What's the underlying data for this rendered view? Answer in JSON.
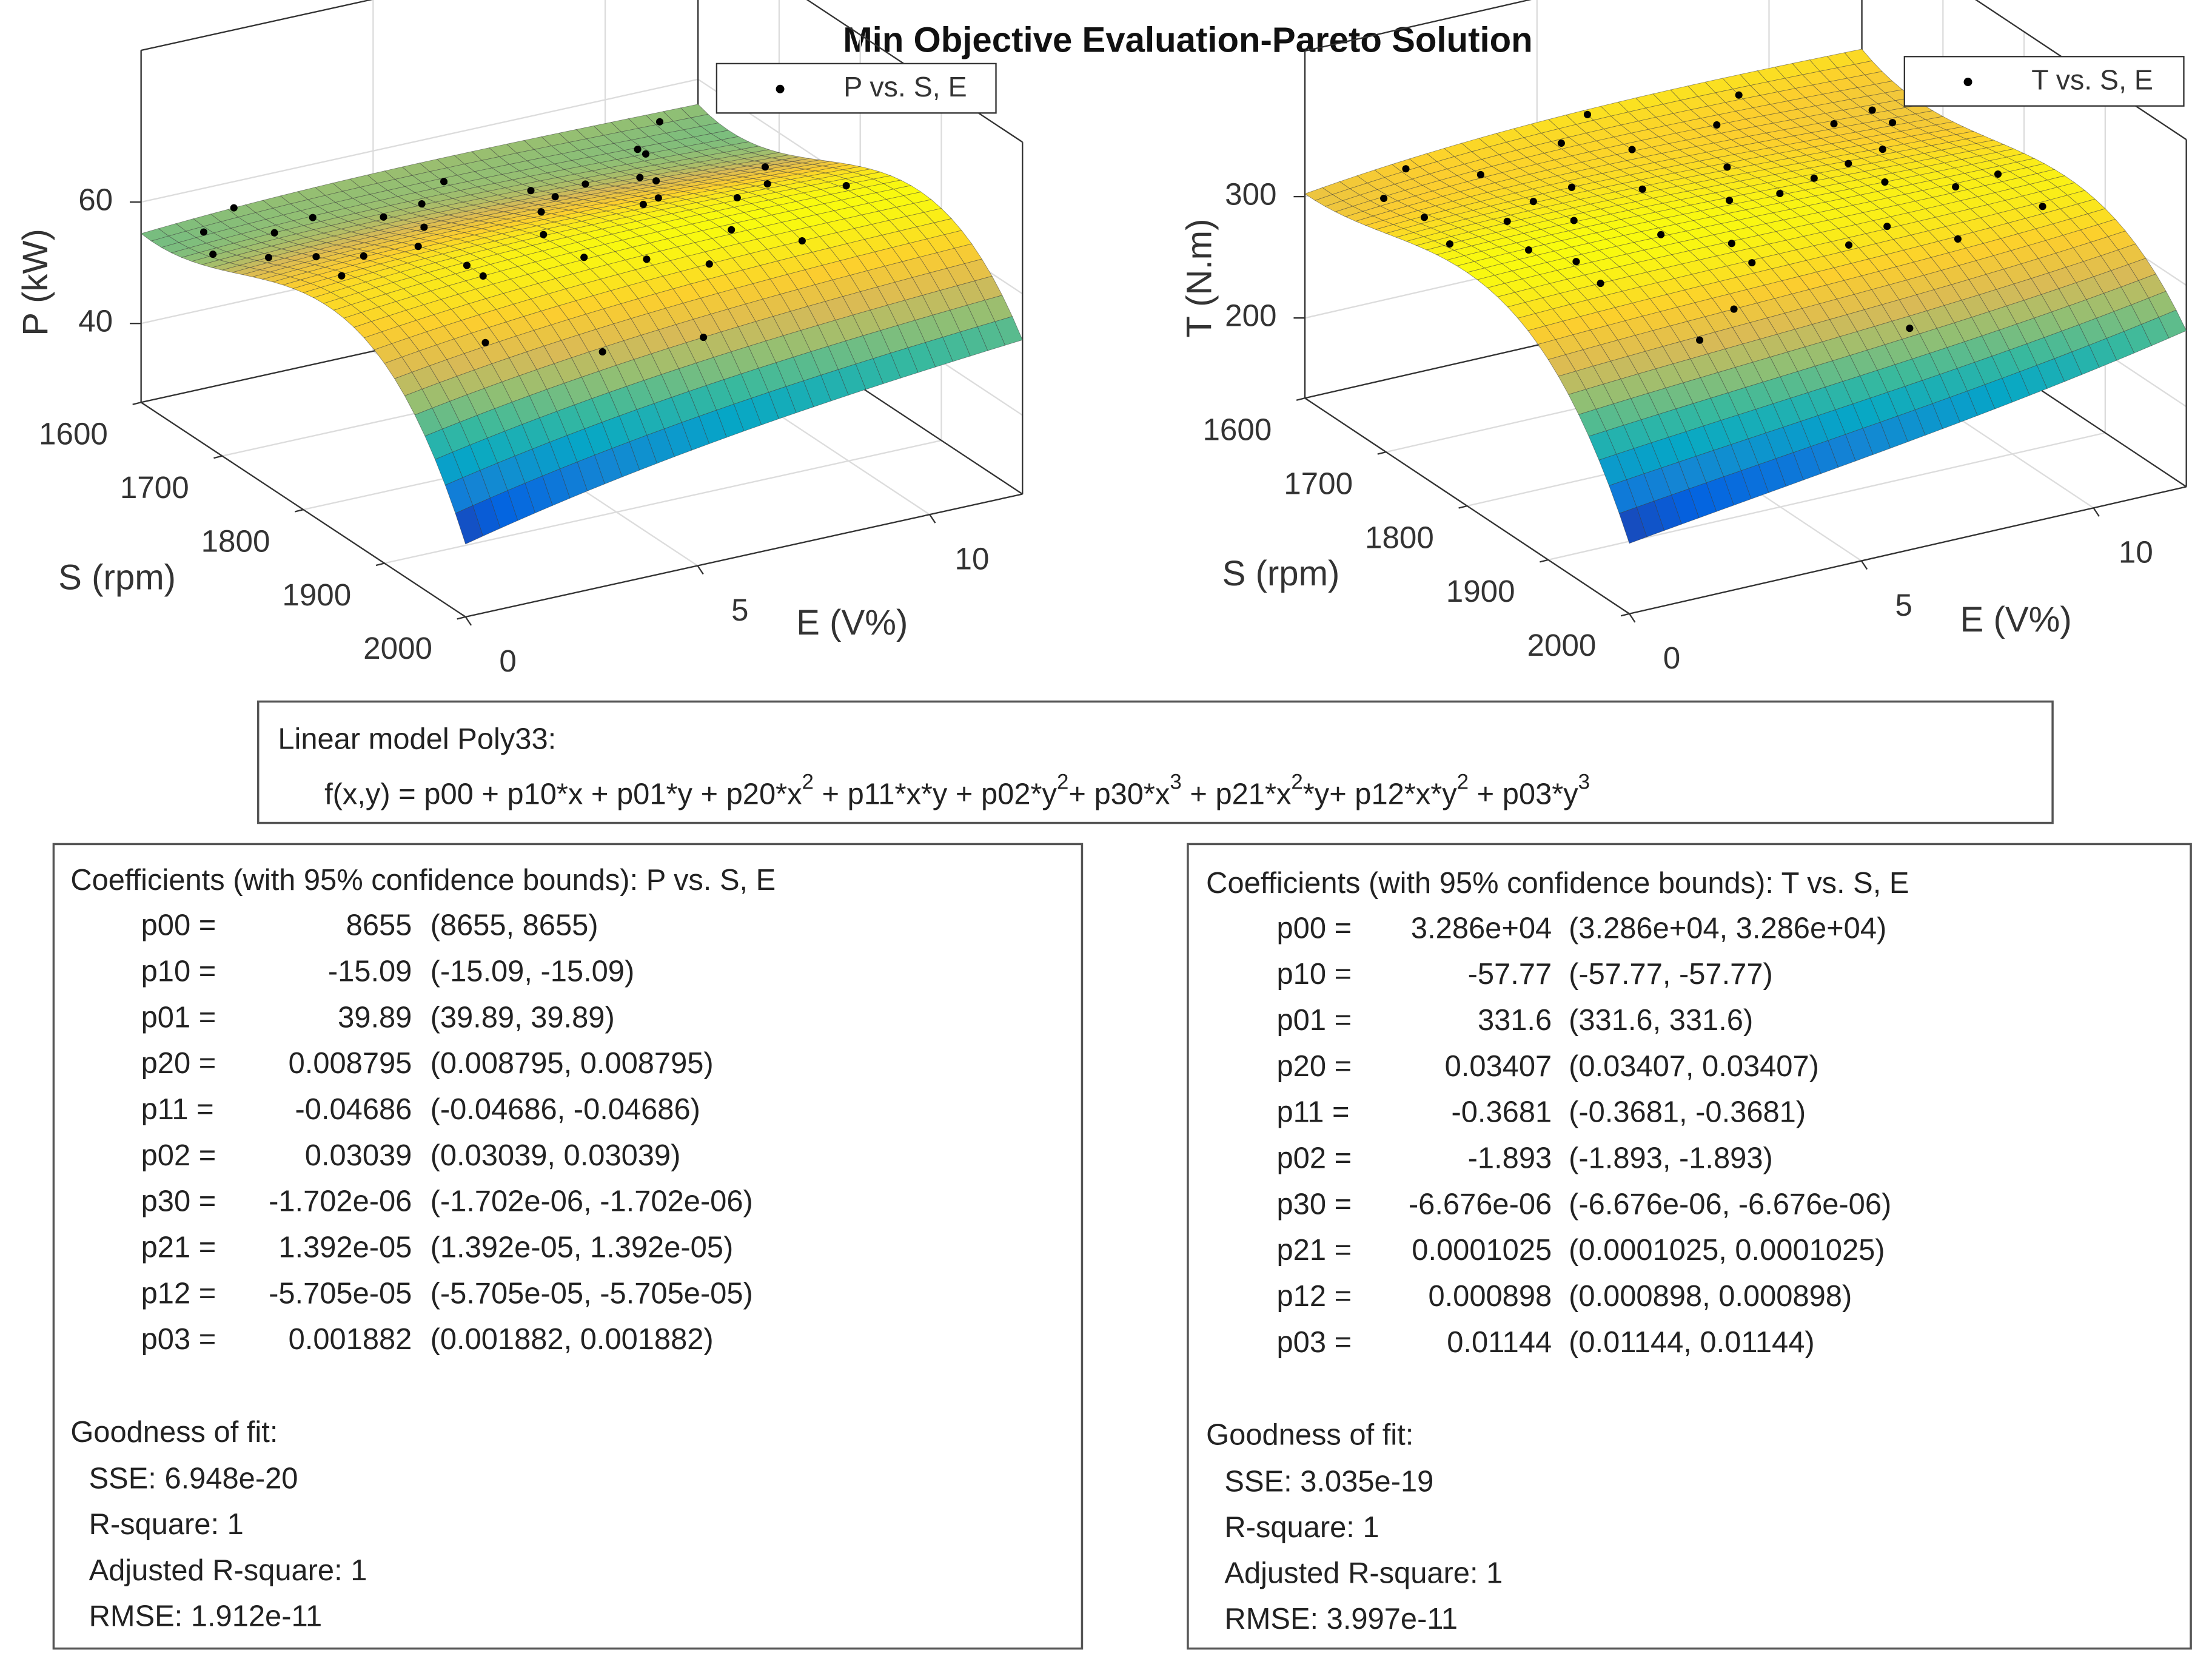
{
  "title": "Min Objective Evaluation-Pareto Solution",
  "chart_data": [
    {
      "type": "surface3d",
      "zlabel": "P (kW)",
      "xlabel": "S (rpm)",
      "ylabel": "E (V%)",
      "xlim": [
        1600,
        2000
      ],
      "xticks": [
        1600,
        1700,
        1800,
        1900,
        2000
      ],
      "ylim": [
        0,
        12
      ],
      "yticks": [
        0,
        5,
        10
      ],
      "zlim": [
        27,
        85
      ],
      "zticks": [
        40,
        60
      ],
      "grid": true,
      "colormap": "parula",
      "marker_color": "#000000",
      "legend": "P vs. S, E",
      "legend_position": "northeast",
      "points": {
        "x": [
          1620,
          1640,
          1660,
          1680,
          1700,
          1610,
          1650,
          1720,
          1750,
          1780,
          1800,
          1830,
          1860,
          1900,
          1940,
          1700,
          1760,
          1820,
          1880,
          1650,
          1630,
          1690,
          1740,
          1790,
          1850,
          1910,
          1670,
          1720,
          1810,
          1870,
          1600,
          1640,
          1710,
          1770,
          1840,
          1900,
          1660,
          1730,
          1790,
          1950
        ],
        "y": [
          1,
          3,
          5,
          7,
          9,
          11,
          2,
          4,
          6,
          8,
          10,
          3,
          5,
          7,
          4,
          1,
          2,
          9,
          6,
          10,
          6,
          8,
          11,
          1,
          3,
          2,
          4,
          9,
          5,
          8,
          2,
          10,
          7,
          3,
          11,
          9,
          0.5,
          1.5,
          7.5,
          6
        ]
      }
    },
    {
      "type": "surface3d",
      "zlabel": "T (N.m)",
      "xlabel": "S (rpm)",
      "ylabel": "E (V%)",
      "xlim": [
        1600,
        2000
      ],
      "xticks": [
        1600,
        1700,
        1800,
        1900,
        2000
      ],
      "ylim": [
        0,
        12
      ],
      "yticks": [
        0,
        5,
        10
      ],
      "zlim": [
        134,
        420
      ],
      "zticks": [
        200,
        300
      ],
      "grid": true,
      "colormap": "parula",
      "marker_color": "#000000",
      "legend": "T vs. S, E",
      "legend_position": "northeast",
      "points": {
        "x": [
          1610,
          1630,
          1650,
          1670,
          1690,
          1700,
          1720,
          1740,
          1760,
          1780,
          1800,
          1820,
          1840,
          1860,
          1880,
          1900,
          1620,
          1660,
          1710,
          1750,
          1790,
          1830,
          1870,
          1640,
          1680,
          1730,
          1770,
          1810,
          1850,
          1890,
          1605,
          1645,
          1695,
          1735,
          1785,
          1825,
          1865,
          1915,
          1755,
          1945
        ],
        "y": [
          2,
          5,
          8,
          11,
          1,
          4,
          7,
          10,
          3,
          6,
          9,
          2,
          5,
          8,
          11,
          4,
          9,
          6,
          3,
          0.5,
          1.5,
          10,
          7,
          1,
          10,
          5,
          8,
          4,
          2,
          9,
          6,
          3,
          11,
          2,
          7,
          11,
          5,
          3,
          9,
          7
        ]
      }
    }
  ],
  "model": {
    "title": "Linear model Poly33:",
    "formula": [
      "f(x,y) = p00 + p10*x + p01*y + p20*x",
      "2",
      " + p11*x*y + p02*y",
      "2",
      "+ p30*x",
      "3",
      " + p21*x",
      "2",
      "*y+ p12*x*y",
      "2",
      " + p03*y",
      "3"
    ]
  },
  "fits": [
    {
      "header": "Coefficients (with 95% confidence bounds): P vs. S, E",
      "coefficients": [
        [
          "p00 =",
          "8655",
          "(8655, 8655)"
        ],
        [
          "p10 =",
          "-15.09",
          "(-15.09, -15.09)"
        ],
        [
          "p01 =",
          "39.89",
          "(39.89, 39.89)"
        ],
        [
          "p20 =",
          "0.008795",
          "(0.008795, 0.008795)"
        ],
        [
          "p11 =",
          "-0.04686",
          "(-0.04686, -0.04686)"
        ],
        [
          "p02 =",
          "0.03039",
          "(0.03039, 0.03039)"
        ],
        [
          "p30 =",
          "-1.702e-06",
          "(-1.702e-06, -1.702e-06)"
        ],
        [
          "p21 =",
          "1.392e-05",
          "(1.392e-05, 1.392e-05)"
        ],
        [
          "p12 =",
          "-5.705e-05",
          "(-5.705e-05, -5.705e-05)"
        ],
        [
          "p03 =",
          "0.001882",
          "(0.001882, 0.001882)"
        ]
      ],
      "goodness_title": "Goodness of fit:",
      "goodness": [
        "SSE: 6.948e-20",
        "R-square: 1",
        "Adjusted R-square: 1",
        "RMSE: 1.912e-11"
      ]
    },
    {
      "header": "Coefficients (with 95% confidence bounds): T vs. S, E",
      "coefficients": [
        [
          "p00 =",
          "3.286e+04",
          "(3.286e+04, 3.286e+04)"
        ],
        [
          "p10 =",
          "-57.77",
          "(-57.77, -57.77)"
        ],
        [
          "p01 =",
          "331.6",
          "(331.6, 331.6)"
        ],
        [
          "p20 =",
          "0.03407",
          "(0.03407, 0.03407)"
        ],
        [
          "p11 =",
          "-0.3681",
          "(-0.3681, -0.3681)"
        ],
        [
          "p02 =",
          "-1.893",
          "(-1.893, -1.893)"
        ],
        [
          "p30 =",
          "-6.676e-06",
          "(-6.676e-06, -6.676e-06)"
        ],
        [
          "p21 =",
          "0.0001025",
          "(0.0001025, 0.0001025)"
        ],
        [
          "p12 =",
          "0.000898",
          "(0.000898, 0.000898)"
        ],
        [
          "p03 =",
          "0.01144",
          "(0.01144, 0.01144)"
        ]
      ],
      "goodness_title": "Goodness of fit:",
      "goodness": [
        "SSE: 3.035e-19",
        "R-square: 1",
        "Adjusted R-square: 1",
        "RMSE: 3.997e-11"
      ]
    }
  ]
}
